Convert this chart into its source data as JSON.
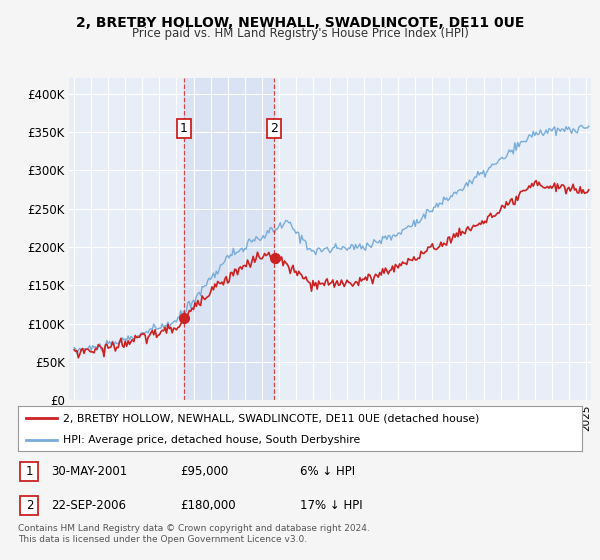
{
  "title": "2, BRETBY HOLLOW, NEWHALL, SWADLINCOTE, DE11 0UE",
  "subtitle": "Price paid vs. HM Land Registry's House Price Index (HPI)",
  "background_color": "#f5f5f5",
  "plot_bg_color": "#e8eef8",
  "grid_color": "#ffffff",
  "highlight_color": "#d0dcf0",
  "legend_label_red": "2, BRETBY HOLLOW, NEWHALL, SWADLINCOTE, DE11 0UE (detached house)",
  "legend_label_blue": "HPI: Average price, detached house, South Derbyshire",
  "purchase1_date": "30-MAY-2001",
  "purchase1_price": "£95,000",
  "purchase1_hpi": "6% ↓ HPI",
  "purchase2_date": "22-SEP-2006",
  "purchase2_price": "£180,000",
  "purchase2_hpi": "17% ↓ HPI",
  "footer": "Contains HM Land Registry data © Crown copyright and database right 2024.\nThis data is licensed under the Open Government Licence v3.0.",
  "ylim": [
    0,
    420000
  ],
  "yticks": [
    0,
    50000,
    100000,
    150000,
    200000,
    250000,
    300000,
    350000,
    400000
  ],
  "ytick_labels": [
    "£0",
    "£50K",
    "£100K",
    "£150K",
    "£200K",
    "£250K",
    "£300K",
    "£350K",
    "£400K"
  ],
  "purchase1_x": 2001.42,
  "purchase2_x": 2006.72,
  "red_color": "#cc2222",
  "blue_color": "#7aacda",
  "vline_color": "#cc2222",
  "xmin": 1995.0,
  "xmax": 2025.1
}
